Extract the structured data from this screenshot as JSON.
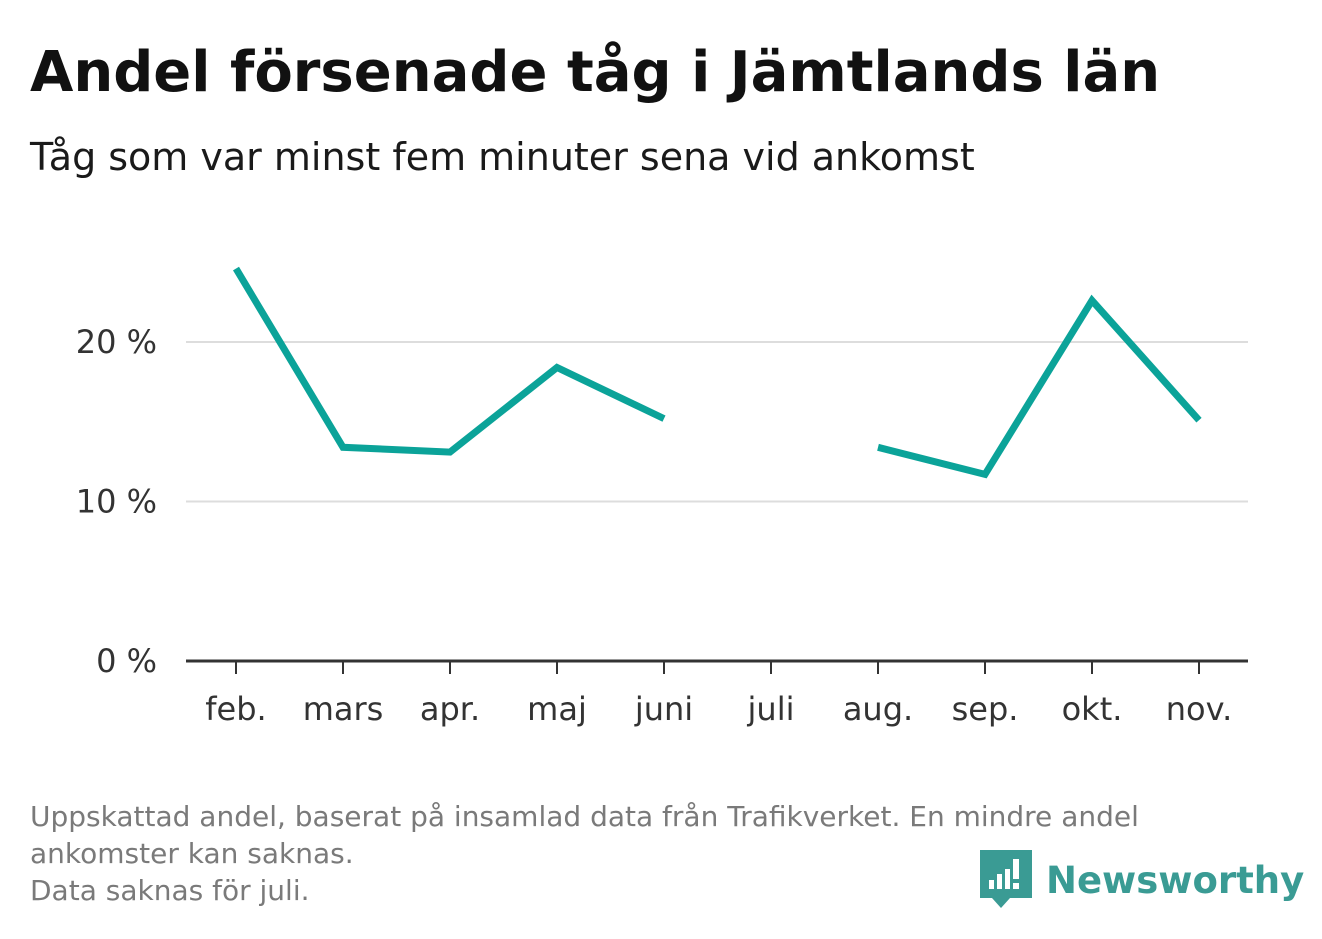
{
  "header": {
    "title": "Andel försenade tåg i Jämtlands län",
    "subtitle": "Tåg som var minst fem minuter sena vid ankomst"
  },
  "chart_data": {
    "type": "line",
    "categories": [
      "feb.",
      "mars",
      "apr.",
      "maj",
      "juni",
      "juli",
      "aug.",
      "sep.",
      "okt.",
      "nov."
    ],
    "series": [
      {
        "values": [
          24.6,
          13.4,
          13.1,
          18.4,
          15.2,
          null,
          13.4,
          11.7,
          22.6,
          15.1
        ],
        "color": "#0ba399"
      }
    ],
    "y_ticks": [
      {
        "value": 0,
        "label": "0 %"
      },
      {
        "value": 10,
        "label": "10 %"
      },
      {
        "value": 20,
        "label": "20 %"
      }
    ],
    "ylim": [
      0,
      25
    ],
    "grid": true,
    "title": "Andel försenade tåg i Jämtlands län",
    "subtitle": "Tåg som var minst fem minuter sena vid ankomst",
    "xlabel": "",
    "ylabel": ""
  },
  "footnote": {
    "lines": [
      "Uppskattad andel, baserat på insamlad data från Trafikverket. En mindre andel",
      "ankomster kan saknas.",
      "Data saknas för juli."
    ]
  },
  "brand": {
    "name": "Newsworthy",
    "icon": "newsworthy-logo-icon",
    "color": "#3a9b94"
  }
}
